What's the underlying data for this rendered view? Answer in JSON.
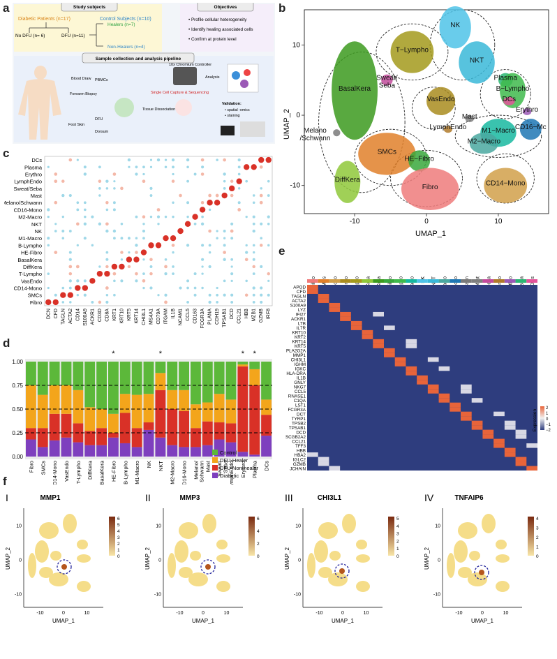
{
  "panel_letters": {
    "a": "a",
    "b": "b",
    "c": "c",
    "d": "d",
    "e": "e",
    "f": "f"
  },
  "panel_a": {
    "study_subjects_title": "Study subjects",
    "diabetic": "Diabetic Patients (n=17)",
    "control": "Control Subjects (n=10)",
    "no_dfu": "No DFU (n= 6)",
    "dfu": "DFU (n=11)",
    "healers": "Healers (n=7)",
    "non_healers": "Non-Healers (n=4)",
    "objectives_title": "Objectives",
    "objectives": [
      "Profile cellular heterogeneity",
      "Identify healing associated cells",
      "Confirm at protein level"
    ],
    "pipeline_title": "Sample collection and analysis pipeline",
    "blood_draw": "Blood\nDraw",
    "pbmcs": "PBMCs",
    "forearm_biopsy": "Forearm\nBiopsy",
    "foot_skin": "Foot Skin",
    "dfu_label": "DFU",
    "dorsum": "Dorsum",
    "chromium": "10x Chromium\nController",
    "single_cell": "Single Cell\nCapture &\nSequencing",
    "analysis": "Analysis",
    "tissue_dissociation": "Tissue\nDissociation",
    "validation": "Validation:",
    "validation_items": [
      "spatial -omics",
      "staining"
    ]
  },
  "panel_b": {
    "xlabel": "UMAP_1",
    "ylabel": "UMAP_2",
    "xticks": [
      "-10",
      "0",
      "10"
    ],
    "yticks": [
      "10",
      "0",
      "-10"
    ],
    "clusters": [
      {
        "name": "NK",
        "color": "#4fc3e8",
        "ux": 4,
        "uy": 12.5
      },
      {
        "name": "NKT",
        "color": "#3ab8d8",
        "ux": 7,
        "uy": 7.5
      },
      {
        "name": "T−Lympho",
        "color": "#a39a1c",
        "ux": -2,
        "uy": 9
      },
      {
        "name": "Plasma",
        "color": "#2bb673",
        "ux": 11,
        "uy": 5
      },
      {
        "name": "B−Lympho",
        "color": "#3fba4c",
        "ux": 12,
        "uy": 3.5
      },
      {
        "name": "DCs",
        "color": "#e4539a",
        "ux": 11.5,
        "uy": 2
      },
      {
        "name": "Erythro",
        "color": "#9b59b6",
        "ux": 14,
        "uy": 0.5
      },
      {
        "name": "Sweat/\nSeba",
        "color": "#c24b9b",
        "ux": -5.5,
        "uy": 5
      },
      {
        "name": "BasalKera",
        "color": "#3c9a1e",
        "ux": -10,
        "uy": 3.5
      },
      {
        "name": "VasEndo",
        "color": "#a98c1f",
        "ux": 2,
        "uy": 2
      },
      {
        "name": "Mast",
        "color": "#7f7f7f",
        "ux": 6,
        "uy": -0.5
      },
      {
        "name": "LymphEndo",
        "color": "#b07a2a",
        "ux": 3,
        "uy": -2
      },
      {
        "name": "CD16−Mc",
        "color": "#1f77b4",
        "ux": 14.5,
        "uy": -2
      },
      {
        "name": "M1−Macro",
        "color": "#17b8a0",
        "ux": 10,
        "uy": -2.5
      },
      {
        "name": "M2−Macro",
        "color": "#4aa8a0",
        "ux": 8,
        "uy": -4
      },
      {
        "name": "Melano\n/Schwann",
        "color": "#7a7a7a",
        "ux": -15.5,
        "uy": -2.5
      },
      {
        "name": "SMCs",
        "color": "#e1802a",
        "ux": -5.5,
        "uy": -5.5
      },
      {
        "name": "HE−Fibro",
        "color": "#38a83c",
        "ux": -1,
        "uy": -6.5
      },
      {
        "name": "DiffKera",
        "color": "#8fc83a",
        "ux": -11,
        "uy": -9.5
      },
      {
        "name": "Fibro",
        "color": "#ef7b7b",
        "ux": 0.5,
        "uy": -10.5
      },
      {
        "name": "CD14−Mono",
        "color": "#d1a04a",
        "ux": 11,
        "uy": -10
      }
    ]
  },
  "panel_c": {
    "rows": [
      "DCs",
      "Plasma",
      "Erythro",
      "LymphEndo",
      "Sweat/Seba",
      "Mast",
      "Melano/Schwann",
      "CD16-Mono",
      "M2-Macro",
      "NKT",
      "NK",
      "M1-Macro",
      "B-Lympho",
      "HE-Fibro",
      "BasalKera",
      "DiffKera",
      "T-Lympho",
      "VasEndo",
      "CD14-Mono",
      "SMCs",
      "Fibro"
    ],
    "genes": [
      "DCN",
      "CFD",
      "TAGLN",
      "ACTA2",
      "CD14",
      "S100A9",
      "ACKR1",
      "CD3D",
      "CD8A",
      "KRT1",
      "KRT10",
      "KRT5",
      "KRT14",
      "CHI3L1",
      "MS4A1",
      "CD79A",
      "ITGAM",
      "IL1B",
      "NCAM1",
      "CCL5",
      "CD163",
      "FCGR3A",
      "PLANA",
      "CDH19",
      "TPSAB1",
      "DCD",
      "CCL21",
      "HBB",
      "MZB1",
      "GZMB",
      "IRF8"
    ]
  },
  "panel_d": {
    "chart_data": {
      "type": "bar",
      "stacked": true,
      "categories": [
        "Fibro",
        "SMCs",
        "CD14-Mono",
        "VasEndo",
        "T-Lympho",
        "DiffKera",
        "BasalKera",
        "HE-Fibro",
        "B-Lympho",
        "M1-Macro",
        "NK",
        "NKT",
        "M2-Macro",
        "CD16-Mono",
        "Melano/Schwann",
        "Mast",
        "Sweat/Seba",
        "LymphEndo",
        "Erythro",
        "Plasma",
        "DCs"
      ],
      "series": [
        {
          "name": "Diabetic",
          "color": "#7e3fbe",
          "values": [
            0.18,
            0.1,
            0.17,
            0.2,
            0.15,
            0.12,
            0.12,
            0.2,
            0.14,
            0.1,
            0.28,
            0.2,
            0.12,
            0.1,
            0.1,
            0.12,
            0.18,
            0.15,
            0.05,
            0.02,
            0.22
          ]
        },
        {
          "name": "DFU-Non-healer",
          "color": "#d93127",
          "values": [
            0.12,
            0.2,
            0.28,
            0.25,
            0.2,
            0.15,
            0.18,
            0.05,
            0.32,
            0.2,
            0.08,
            0.5,
            0.38,
            0.38,
            0.2,
            0.25,
            0.18,
            0.2,
            0.9,
            0.73,
            0.22
          ]
        },
        {
          "name": "DFU-Healer",
          "color": "#f3a51b",
          "values": [
            0.45,
            0.35,
            0.3,
            0.3,
            0.35,
            0.25,
            0.2,
            0.2,
            0.2,
            0.35,
            0.3,
            0.18,
            0.2,
            0.22,
            0.25,
            0.2,
            0.3,
            0.25,
            0.02,
            0.17,
            0.16
          ]
        },
        {
          "name": "Control",
          "color": "#5cb83a",
          "values": [
            0.25,
            0.35,
            0.25,
            0.25,
            0.3,
            0.48,
            0.5,
            0.55,
            0.34,
            0.35,
            0.34,
            0.12,
            0.3,
            0.3,
            0.45,
            0.43,
            0.34,
            0.4,
            0.03,
            0.08,
            0.4
          ]
        }
      ],
      "yticks": [
        "0.00",
        "0.25",
        "0.50",
        "0.75",
        "1.00"
      ],
      "star_label": "*",
      "starred": [
        "HE-Fibro",
        "NKT",
        "Erythro",
        "Plasma"
      ],
      "legend": [
        "Control",
        "DFU-Healer",
        "DFU-Non-healer",
        "Diabetic"
      ],
      "xlabels": [
        "Fibro",
        "SMCs",
        "CD14-Mono",
        "VasEndo",
        "T-Lympho",
        "DiffKera",
        "BasalKera",
        "HE-Fibro",
        "B-Lympho",
        "M1-Macro",
        "NK",
        "NKT",
        "M2-Macro",
        "CD16-Mono",
        "Melano/\nSchwann",
        "Mast",
        "Sweat/\nSeba",
        "LymphEndo",
        "Erythro",
        "Plasma",
        "DCs"
      ]
    }
  },
  "panel_e": {
    "columns": [
      "Fibro",
      "SMCs",
      "CD14-Mono",
      "VasEndo",
      "T-Lympho",
      "DiffKera",
      "BasalKera",
      "HE-Fibro",
      "B-Lympho",
      "M1-Macro",
      "NK",
      "NKT",
      "M2-Macro",
      "CD16-Mono",
      "Melano/Schwann",
      "Mast",
      "Sweat/Seba",
      "LymphEndo",
      "Erythro",
      "Plasma",
      "DCs"
    ],
    "genes": [
      "APOD",
      "CFD",
      "TAGLN",
      "ACTA2",
      "S100A9",
      "LYZ",
      "IFI27",
      "ACKR1",
      "LTB",
      "IL7R",
      "KRT10",
      "KRT2",
      "KRT14",
      "KRT5",
      "PLA2G2A",
      "MMP1",
      "CHI3L1",
      "IGHM",
      "IGKC",
      "HLA-DRA",
      "IL1B",
      "GNLY",
      "NKG7",
      "CCL5",
      "RNASE1",
      "C1QA",
      "LST1",
      "FCGR3A",
      "DCT",
      "TYRP1",
      "TPSB2",
      "TPSAB1",
      "DCD",
      "SCGB2A2",
      "CCL21",
      "TFF3",
      "HBB",
      "HBA2",
      "IGLC2",
      "GZMB",
      "JCHAIN"
    ],
    "legend_title": "Expression",
    "legend_ticks": [
      "2",
      "1",
      "0",
      "−1",
      "−2"
    ]
  },
  "panel_f": {
    "plots": [
      {
        "roman": "I",
        "gene": "MMP1",
        "ticks": [
          "6",
          "5",
          "4",
          "3",
          "2",
          "1",
          "0"
        ]
      },
      {
        "roman": "II",
        "gene": "MMP3",
        "ticks": [
          "6",
          "4",
          "2",
          "0"
        ]
      },
      {
        "roman": "III",
        "gene": "CHI3L1",
        "ticks": [
          "5",
          "4",
          "3",
          "2",
          "1",
          "0"
        ]
      },
      {
        "roman": "IV",
        "gene": "TNFAIP6",
        "ticks": [
          "4",
          "3",
          "2",
          "1",
          "0"
        ]
      }
    ],
    "xlabel": "UMAP_1",
    "ylabel": "UMAP_2",
    "xticks": [
      "-10",
      "0",
      "10"
    ],
    "yticks": [
      "10",
      "0",
      "-10"
    ]
  }
}
